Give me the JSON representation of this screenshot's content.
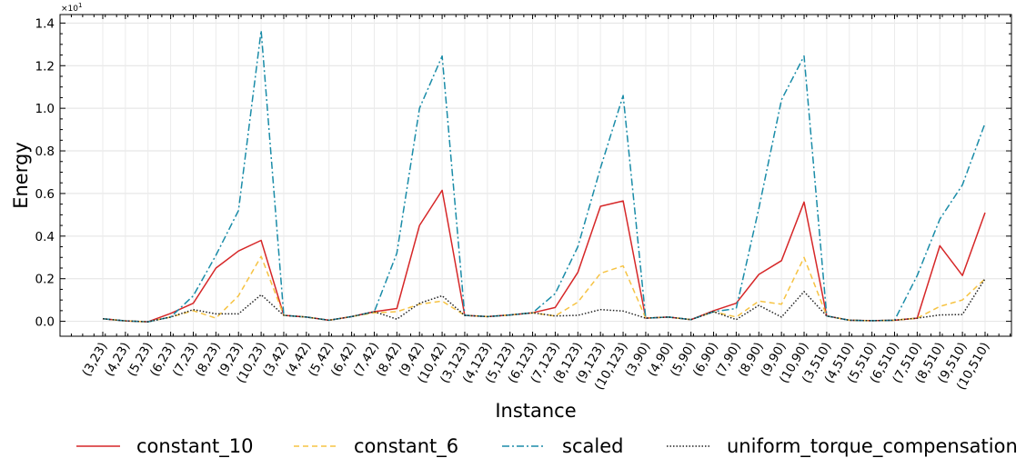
{
  "chart_data": {
    "type": "line",
    "xlabel": "Instance",
    "ylabel": "Energy",
    "y_multiplier": "×10",
    "y_multiplier_exp": "1",
    "ylim": [
      -0.07,
      1.44
    ],
    "yticks": [
      "0.0",
      "0.2",
      "0.4",
      "0.6",
      "0.8",
      "1.0",
      "1.2",
      "1.4"
    ],
    "grid": true,
    "legend_position": "bottom",
    "categories": [
      "(3,23)",
      "(4,23)",
      "(5,23)",
      "(6,23)",
      "(7,23)",
      "(8,23)",
      "(9,23)",
      "(10,23)",
      "(3,42)",
      "(4,42)",
      "(5,42)",
      "(6,42)",
      "(7,42)",
      "(8,42)",
      "(9,42)",
      "(10,42)",
      "(3,123)",
      "(4,123)",
      "(5,123)",
      "(6,123)",
      "(7,123)",
      "(8,123)",
      "(9,123)",
      "(10,123)",
      "(3,90)",
      "(4,90)",
      "(5,90)",
      "(6,90)",
      "(7,90)",
      "(8,90)",
      "(9,90)",
      "(10,90)",
      "(3,510)",
      "(4,510)",
      "(5,510)",
      "(6,510)",
      "(7,510)",
      "(8,510)",
      "(9,510)",
      "(10,510)"
    ],
    "series": [
      {
        "name": "constant_10",
        "color": "#d62728",
        "dash": "solid",
        "values": [
          0.012,
          0.002,
          -0.002,
          0.037,
          0.085,
          0.25,
          0.33,
          0.38,
          0.028,
          0.02,
          0.005,
          0.022,
          0.045,
          0.06,
          0.45,
          0.615,
          0.028,
          0.022,
          0.03,
          0.04,
          0.065,
          0.23,
          0.54,
          0.565,
          0.015,
          0.02,
          0.008,
          0.05,
          0.085,
          0.22,
          0.285,
          0.56,
          0.025,
          0.005,
          0.003,
          0.005,
          0.015,
          0.355,
          0.215,
          0.51
        ]
      },
      {
        "name": "constant_6",
        "color": "#f6c343",
        "dash": "dashed",
        "values": [
          0.012,
          0.002,
          -0.002,
          0.02,
          0.05,
          0.015,
          0.12,
          0.305,
          0.028,
          0.02,
          0.005,
          0.022,
          0.04,
          0.045,
          0.08,
          0.095,
          0.028,
          0.022,
          0.03,
          0.04,
          0.025,
          0.09,
          0.225,
          0.26,
          0.015,
          0.02,
          0.008,
          0.045,
          0.02,
          0.095,
          0.08,
          0.3,
          0.025,
          0.005,
          0.003,
          0.005,
          0.015,
          0.07,
          0.1,
          0.2
        ]
      },
      {
        "name": "scaled",
        "color": "#1a8ca8",
        "dash": "dashdot",
        "values": [
          0.012,
          0.002,
          -0.002,
          0.02,
          0.12,
          0.31,
          0.52,
          1.365,
          0.028,
          0.02,
          0.005,
          0.022,
          0.045,
          0.32,
          1.0,
          1.245,
          0.028,
          0.022,
          0.03,
          0.04,
          0.13,
          0.35,
          0.72,
          1.06,
          0.015,
          0.02,
          0.008,
          0.045,
          0.06,
          0.53,
          1.04,
          1.245,
          0.025,
          0.005,
          0.003,
          0.005,
          0.215,
          0.48,
          0.64,
          0.93
        ]
      },
      {
        "name": "uniform_torque_compensation",
        "color": "#222222",
        "dash": "dotted",
        "values": [
          0.012,
          0.002,
          -0.002,
          0.02,
          0.055,
          0.035,
          0.035,
          0.125,
          0.028,
          0.02,
          0.005,
          0.022,
          0.045,
          0.01,
          0.085,
          0.12,
          0.028,
          0.022,
          0.03,
          0.04,
          0.025,
          0.028,
          0.055,
          0.048,
          0.015,
          0.02,
          0.008,
          0.045,
          0.008,
          0.075,
          0.02,
          0.14,
          0.025,
          0.005,
          0.003,
          0.005,
          0.015,
          0.03,
          0.032,
          0.2
        ]
      }
    ]
  }
}
